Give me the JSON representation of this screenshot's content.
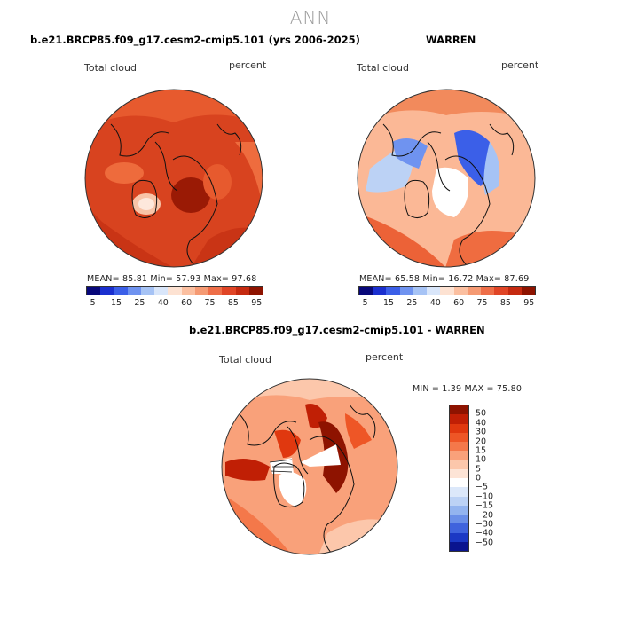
{
  "title": "ANN",
  "panels": {
    "top_left": {
      "title": "b.e21.BRCP85.f09_g17.cesm2-cmip5.101 (yrs 2006-2025)",
      "field": "Total cloud",
      "units": "percent",
      "stats": "MEAN=   85.81   Min=   57.93   Max=   97.68"
    },
    "top_right": {
      "title": "WARREN",
      "field": "Total cloud",
      "units": "percent",
      "stats": "MEAN=   65.58   Min=   16.72   Max=   87.69"
    },
    "bottom": {
      "title": "b.e21.BRCP85.f09_g17.cesm2-cmip5.101 - WARREN",
      "field": "Total cloud",
      "units": "percent",
      "stats": "MIN =    1.39 MAX =   75.80"
    }
  },
  "colorbar_abs": {
    "colors": [
      "#08087a",
      "#1a2fcf",
      "#3b5fe8",
      "#6f93f0",
      "#a6c3f5",
      "#d9e6fa",
      "#fde2d2",
      "#fbbfa0",
      "#f59a73",
      "#ee6e48",
      "#e04526",
      "#c52a10",
      "#8e1300"
    ],
    "labels": [
      "5",
      "15",
      "25",
      "40",
      "60",
      "75",
      "85",
      "95"
    ]
  },
  "colorbar_diff": {
    "colors": [
      "#8e1300",
      "#c01f05",
      "#e0380f",
      "#ee5626",
      "#f4784a",
      "#f9a17a",
      "#fcc7ab",
      "#fde4d6",
      "#ffffff",
      "#dce8fa",
      "#bcd2f5",
      "#93b4ef",
      "#6a8fe8",
      "#3f63dd",
      "#1b38c4",
      "#0a148e"
    ],
    "labels": [
      "50",
      "40",
      "30",
      "20",
      "15",
      "10",
      "5",
      "0",
      "−5",
      "−10",
      "−15",
      "−20",
      "−30",
      "−40",
      "−50"
    ]
  }
}
